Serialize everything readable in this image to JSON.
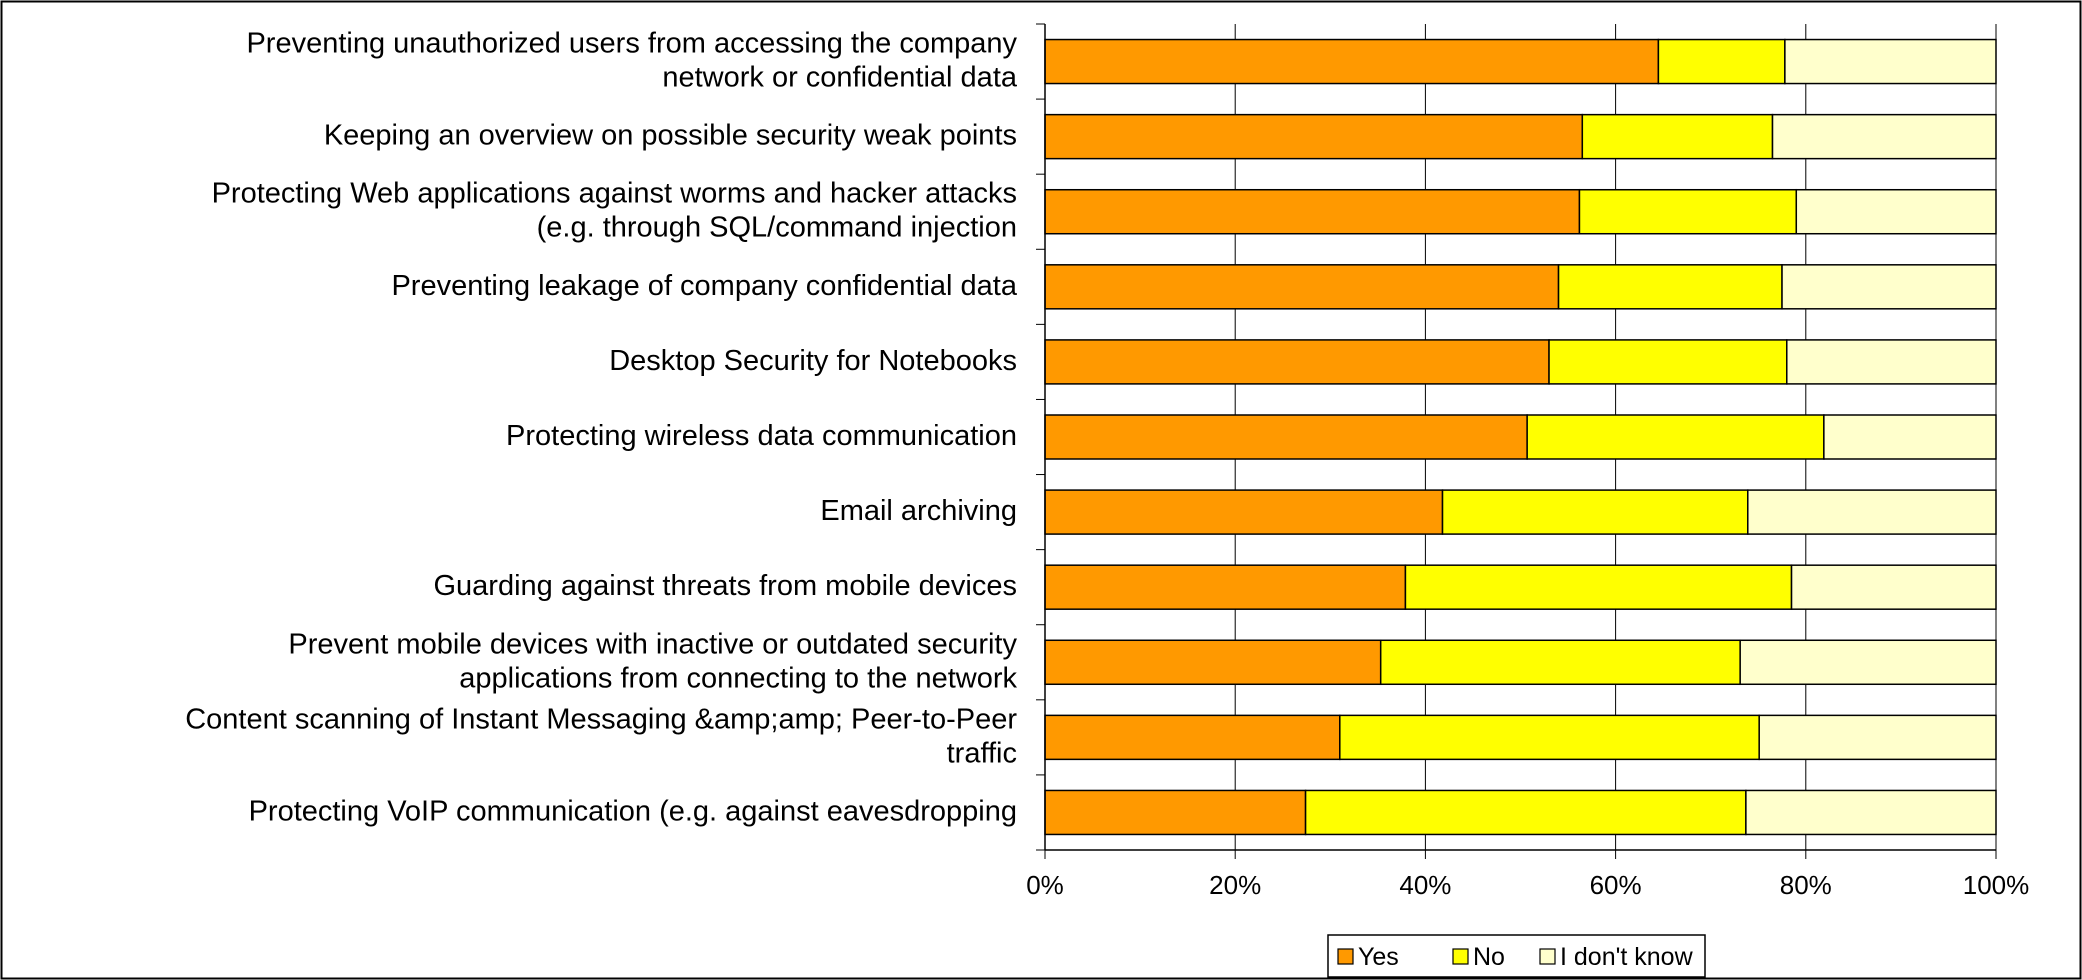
{
  "chart_data": {
    "type": "bar",
    "orientation": "horizontal",
    "stacked": "percent",
    "categories": [
      "Preventing unauthorized users from accessing the company network or confidential data",
      "Keeping an overview on possible security weak points",
      "Protecting Web applications against worms and hacker attacks (e.g. through SQL/command injection",
      "Preventing leakage of company confidential data",
      "Desktop Security for Notebooks",
      "Protecting wireless data communication",
      "Email archiving",
      "Guarding against threats from mobile devices",
      "Prevent mobile devices with inactive or outdated security applications from connecting to the network",
      "Content scanning of Instant Messaging &amp;amp; Peer-to-Peer traffic",
      "Protecting VoIP communication (e.g. against eavesdropping"
    ],
    "category_lines": [
      [
        "Preventing unauthorized users from accessing the company",
        "network or confidential data"
      ],
      [
        "Keeping an overview on possible security weak points"
      ],
      [
        "Protecting Web applications against worms and hacker attacks",
        "(e.g. through SQL/command injection"
      ],
      [
        "Preventing leakage of company confidential data"
      ],
      [
        "Desktop Security for Notebooks"
      ],
      [
        "Protecting wireless data communication"
      ],
      [
        "Email archiving"
      ],
      [
        "Guarding against threats from mobile devices"
      ],
      [
        "Prevent mobile devices with inactive or outdated security",
        "applications from connecting to the network"
      ],
      [
        "Content scanning of Instant Messaging &amp;amp; Peer-to-Peer",
        "traffic"
      ],
      [
        "Protecting VoIP communication (e.g. against eavesdropping"
      ]
    ],
    "series": [
      {
        "name": "Yes",
        "color": "#FF9900",
        "values": [
          64.5,
          56.5,
          56.2,
          54.0,
          53.0,
          50.7,
          41.8,
          37.9,
          35.3,
          31.0,
          27.4
        ]
      },
      {
        "name": "No",
        "color": "#FFFF00",
        "values": [
          13.3,
          20.0,
          22.8,
          23.5,
          25.0,
          31.2,
          32.1,
          40.6,
          37.8,
          44.1,
          46.3
        ]
      },
      {
        "name": "I don't know",
        "color": "#FFFFCC",
        "values": [
          22.2,
          23.5,
          21.0,
          22.5,
          22.0,
          18.1,
          26.1,
          21.5,
          26.9,
          24.9,
          26.3
        ]
      }
    ],
    "xlim": [
      0,
      100
    ],
    "x_ticks": [
      "0%",
      "20%",
      "40%",
      "60%",
      "80%",
      "100%"
    ],
    "grid": "vertical",
    "legend_position": "bottom",
    "title": "",
    "xlabel": "",
    "ylabel": ""
  }
}
